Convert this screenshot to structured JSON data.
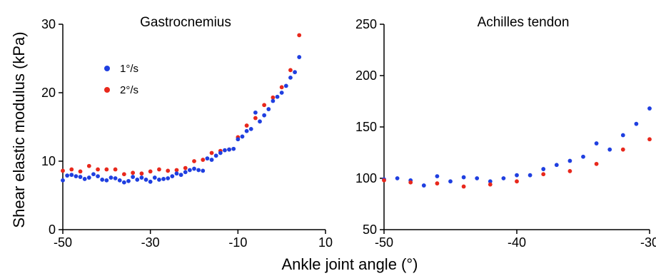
{
  "figure": {
    "ylabel": "Shear elastic modulus (kPa)",
    "xlabel": "Ankle joint angle (°)"
  },
  "colors": {
    "series1": "#1f3fe0",
    "series2": "#e8281c"
  },
  "chart_data": [
    {
      "type": "scatter",
      "title": "Gastrocnemius",
      "xlim": [
        -50,
        10
      ],
      "ylim": [
        0,
        30
      ],
      "xticks": [
        -50,
        -30,
        -10,
        10
      ],
      "yticks": [
        0,
        10,
        20,
        30
      ],
      "grid": false,
      "legend": "top-left",
      "series": [
        {
          "name": "2°/s",
          "color": "#e8281c",
          "x": [
            -50,
            -48,
            -46,
            -44,
            -42,
            -40,
            -38,
            -36,
            -34,
            -32,
            -30,
            -28,
            -26,
            -24,
            -22,
            -20,
            -18,
            -16,
            -14,
            -12,
            -10,
            -8,
            -6,
            -4,
            -2,
            0,
            2,
            4
          ],
          "y": [
            8.6,
            8.8,
            8.5,
            9.3,
            8.8,
            8.8,
            8.8,
            8.1,
            8.3,
            8.2,
            8.5,
            8.8,
            8.6,
            8.7,
            9.0,
            10.0,
            10.2,
            11.2,
            11.5,
            11.7,
            13.5,
            15.2,
            16.3,
            18.2,
            19.3,
            20.8,
            23.3,
            28.4
          ]
        },
        {
          "name": "1°/s",
          "color": "#1f3fe0",
          "x": [
            -50,
            -49,
            -48,
            -47,
            -46,
            -45,
            -44,
            -43,
            -42,
            -41,
            -40,
            -39,
            -38,
            -37,
            -36,
            -35,
            -34,
            -33,
            -32,
            -31,
            -30,
            -29,
            -28,
            -27,
            -26,
            -25,
            -24,
            -23,
            -22,
            -21,
            -20,
            -19,
            -18,
            -17,
            -16,
            -15,
            -14,
            -13,
            -12,
            -11,
            -10,
            -9,
            -8,
            -7,
            -6,
            -5,
            -4,
            -3,
            -2,
            -1,
            0,
            1,
            2,
            3,
            4
          ],
          "y": [
            7.2,
            7.9,
            8.0,
            7.8,
            7.7,
            7.4,
            7.6,
            8.1,
            7.8,
            7.3,
            7.2,
            7.6,
            7.5,
            7.2,
            6.9,
            7.1,
            7.7,
            7.3,
            7.6,
            7.3,
            7.0,
            7.6,
            7.3,
            7.4,
            7.5,
            7.8,
            8.2,
            8.0,
            8.4,
            8.7,
            8.9,
            8.7,
            8.6,
            10.4,
            10.2,
            10.8,
            11.2,
            11.6,
            11.7,
            11.8,
            13.2,
            13.6,
            14.4,
            14.7,
            17.1,
            15.8,
            16.7,
            17.6,
            18.8,
            19.4,
            20.0,
            21.0,
            22.2,
            23.0,
            25.2
          ]
        }
      ]
    },
    {
      "type": "scatter",
      "title": "Achilles tendon",
      "xlim": [
        -50,
        -30
      ],
      "ylim": [
        50,
        250
      ],
      "xticks": [
        -50,
        -40,
        -30
      ],
      "yticks": [
        50,
        100,
        150,
        200,
        250
      ],
      "grid": false,
      "series": [
        {
          "name": "1°/s",
          "color": "#1f3fe0",
          "x": [
            -50,
            -49,
            -48,
            -47,
            -46,
            -45,
            -44,
            -43,
            -42,
            -41,
            -40,
            -39,
            -38,
            -37,
            -36,
            -35,
            -34,
            -33,
            -32,
            -31,
            -30
          ],
          "y": [
            99,
            100,
            98,
            93,
            102,
            97,
            101,
            100,
            97,
            100,
            103,
            103,
            109,
            113,
            117,
            121,
            134,
            128,
            142,
            153,
            168
          ]
        },
        {
          "name": "2°/s",
          "color": "#e8281c",
          "x": [
            -50,
            -48,
            -46,
            -44,
            -42,
            -40,
            -38,
            -36,
            -34,
            -32,
            -30
          ],
          "y": [
            98,
            96,
            95,
            92,
            94,
            97,
            104,
            107,
            114,
            128,
            138
          ]
        }
      ]
    }
  ]
}
